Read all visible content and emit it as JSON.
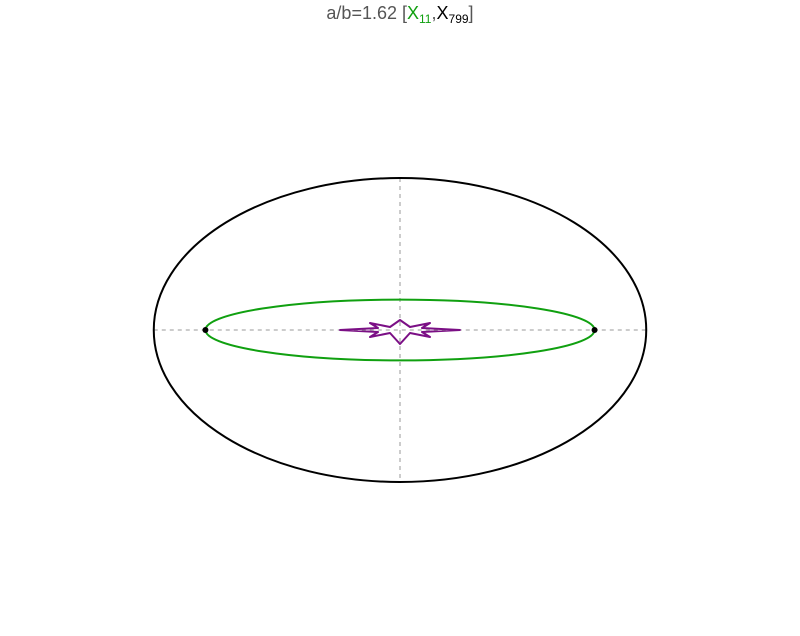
{
  "title": {
    "prefix": "a/b=1.62 [",
    "first_label": "X",
    "first_sub": "11",
    "separator": ",",
    "second_label": "X",
    "second_sub": "799",
    "suffix": "]",
    "first_color": "#10a010",
    "second_color": "#000000"
  },
  "colors": {
    "outer_ellipse": "#000000",
    "inner_ellipse": "#10a010",
    "curve": "#7b0f85",
    "axes": "#999999",
    "points": "#000000"
  },
  "chart_data": {
    "type": "diagram",
    "aspect_ratio_a_over_b": 1.62,
    "outer_ellipse": {
      "a": 1.62,
      "b": 1.0
    },
    "inner_ellipse": {
      "a": 1.28,
      "b": 0.2
    },
    "points": [
      {
        "x": -1.28,
        "y": 0
      },
      {
        "x": 1.28,
        "y": 0
      }
    ],
    "axes": {
      "style": "dashed",
      "shown": true
    }
  }
}
